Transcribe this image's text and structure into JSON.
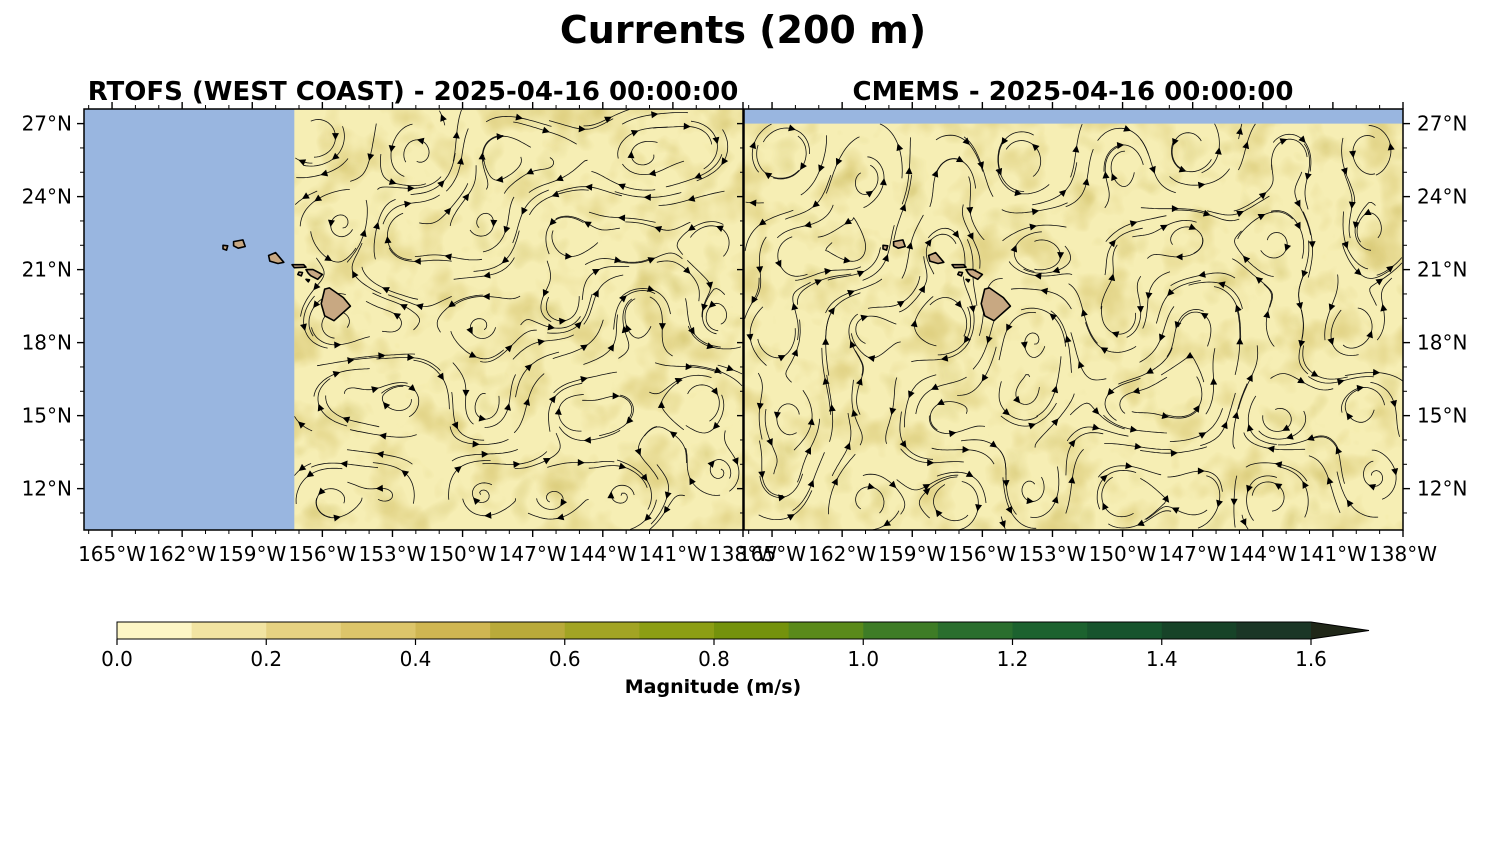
{
  "figure_title": "Currents (200 m)",
  "chart_data": {
    "type": "heatmap",
    "panels": [
      {
        "title": "RTOFS (WEST COAST) - 2025-04-16 00:00:00",
        "x_ticks": [
          "165°W",
          "162°W",
          "159°W",
          "156°W",
          "153°W",
          "150°W",
          "147°W",
          "144°W",
          "141°W",
          "138°W"
        ],
        "x_tick_values": [
          -165,
          -162,
          -159,
          -156,
          -153,
          -150,
          -147,
          -144,
          -141,
          -138
        ],
        "y_ticks": [
          "27°N",
          "24°N",
          "21°N",
          "18°N",
          "15°N",
          "12°N"
        ],
        "y_tick_values": [
          27,
          24,
          21,
          18,
          15,
          12
        ],
        "xlim": [
          -166.2,
          -138
        ],
        "ylim": [
          10.3,
          27.6
        ],
        "data_extent_lon": [
          -157.2,
          -138
        ],
        "overlay": "streamlines",
        "y_axis_side": "left"
      },
      {
        "title": "CMEMS - 2025-04-16 00:00:00",
        "x_ticks": [
          "165°W",
          "162°W",
          "159°W",
          "156°W",
          "153°W",
          "150°W",
          "147°W",
          "144°W",
          "141°W",
          "138°W"
        ],
        "x_tick_values": [
          -165,
          -162,
          -159,
          -156,
          -153,
          -150,
          -147,
          -144,
          -141,
          -138
        ],
        "y_ticks": [
          "27°N",
          "24°N",
          "21°N",
          "18°N",
          "15°N",
          "12°N"
        ],
        "y_tick_values": [
          27,
          24,
          21,
          18,
          15,
          12
        ],
        "xlim": [
          -166.2,
          -138
        ],
        "ylim": [
          10.3,
          27.6
        ],
        "data_extent_lat_max": 27,
        "overlay": "streamlines",
        "y_axis_side": "right"
      }
    ],
    "colorbar": {
      "label": "Magnitude (m/s)",
      "ticks": [
        "0.0",
        "0.2",
        "0.4",
        "0.6",
        "0.8",
        "1.0",
        "1.2",
        "1.4",
        "1.6"
      ],
      "tick_values": [
        0,
        0.2,
        0.4,
        0.6,
        0.8,
        1.0,
        1.2,
        1.4,
        1.6
      ],
      "range": [
        0,
        1.6
      ],
      "level_step": 0.1,
      "extend": "max",
      "colors": [
        "#fdf6c6",
        "#f2e4a2",
        "#e6d282",
        "#dcc56a",
        "#cfb652",
        "#b9aa3a",
        "#a2a424",
        "#8c9e14",
        "#74920c",
        "#5a8a1a",
        "#3e7c26",
        "#2a6e2e",
        "#1c622f",
        "#17542d",
        "#174328",
        "#1b3626",
        "#1e2e22",
        "#202718"
      ]
    },
    "colors": {
      "water_bg": "#99b6e0",
      "land": "#c8a882",
      "field_base": "#f6eeb4"
    }
  }
}
